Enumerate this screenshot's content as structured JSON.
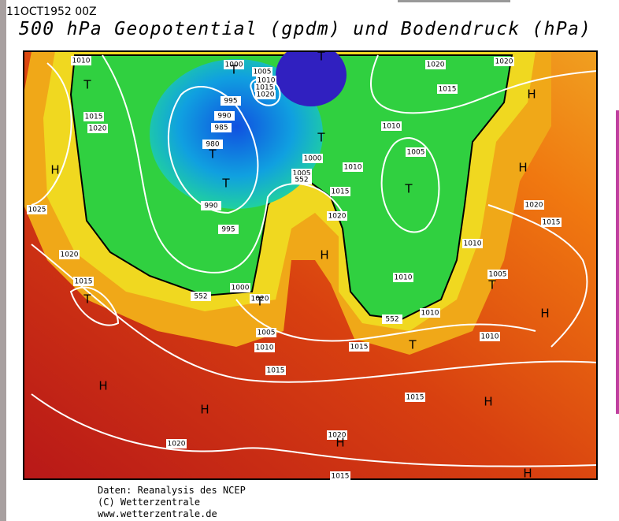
{
  "header": {
    "date": "11OCT1952 00Z",
    "title": "500 hPa Geopotential (gpdm) und Bodendruck (hPa)"
  },
  "map": {
    "isobar_labels": [
      "1010",
      "1000",
      "1005",
      "1010",
      "1015",
      "1020",
      "995",
      "990",
      "985",
      "980",
      "1015",
      "1020",
      "1020",
      "1020",
      "1015",
      "1010",
      "1005",
      "1000",
      "1010",
      "1005",
      "1015",
      "990",
      "995",
      "1020",
      "1025",
      "1020",
      "1015",
      "1010",
      "1005",
      "1020",
      "1015",
      "1010",
      "1000",
      "1020",
      "1010",
      "1005",
      "1010",
      "1015",
      "1010",
      "1015",
      "1015",
      "1020",
      "1020",
      "1015"
    ],
    "contour_labels": [
      "552",
      "552",
      "552"
    ],
    "systems": [
      "T",
      "T",
      "T",
      "T",
      "T",
      "T",
      "T",
      "H",
      "H",
      "H",
      "H",
      "T",
      "T",
      "T",
      "H",
      "T",
      "H",
      "H",
      "H",
      "H",
      "H"
    ]
  },
  "footer": {
    "lines": [
      "Daten: Reanalysis des NCEP",
      "(C) Wetterzentrale",
      "www.wetterzentrale.de"
    ]
  }
}
